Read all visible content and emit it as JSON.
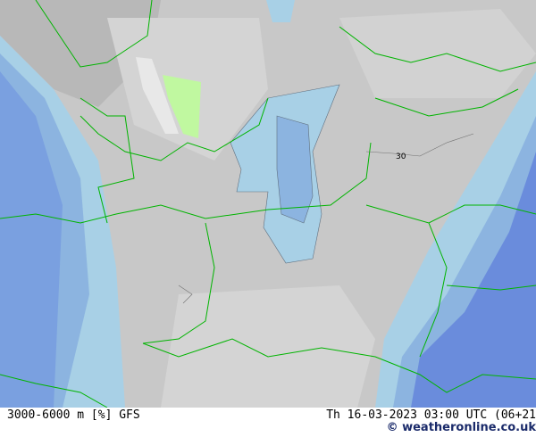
{
  "map": {
    "contour_label": "30",
    "colors": {
      "land_base": "#c8c8c8",
      "light": "#d4d4d4",
      "dark": "#b4b4b4",
      "light_blue": "#a8d0e6",
      "mid_blue": "#8cb4e0",
      "deep_blue": "#6a8cdc",
      "green": "#c0f8a0",
      "borders": "#00b400"
    }
  },
  "footer": {
    "left": "3000-6000 m [%] GFS",
    "right": "Th 16-03-2023 03:00 UTC (06+21",
    "credit": "© weatheronline.co.uk"
  }
}
